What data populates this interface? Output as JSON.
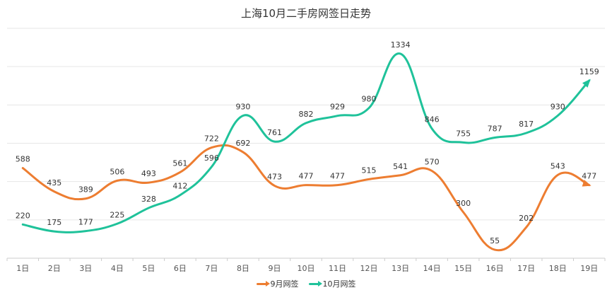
{
  "chart_data": {
    "type": "line",
    "title": "上海10月二手房网签日走势",
    "categories": [
      "1日",
      "2日",
      "3日",
      "4日",
      "5日",
      "6日",
      "7日",
      "8日",
      "9日",
      "10日",
      "11日",
      "12日",
      "13日",
      "14日",
      "15日",
      "16日",
      "17日",
      "18日",
      "19日"
    ],
    "series": [
      {
        "name": "9月网签",
        "color": "#ed7d31",
        "values": [
          588,
          435,
          389,
          506,
          493,
          561,
          722,
          692,
          473,
          477,
          477,
          515,
          541,
          570,
          300,
          55,
          202,
          543,
          477
        ]
      },
      {
        "name": "10月网签",
        "color": "#1fc29a",
        "values": [
          220,
          175,
          177,
          225,
          328,
          412,
          596,
          930,
          761,
          882,
          929,
          980,
          1334,
          846,
          755,
          787,
          817,
          930,
          1159
        ]
      }
    ],
    "ylim": [
      0,
      1500
    ],
    "grid": true,
    "legend_position": "bottom-center"
  }
}
